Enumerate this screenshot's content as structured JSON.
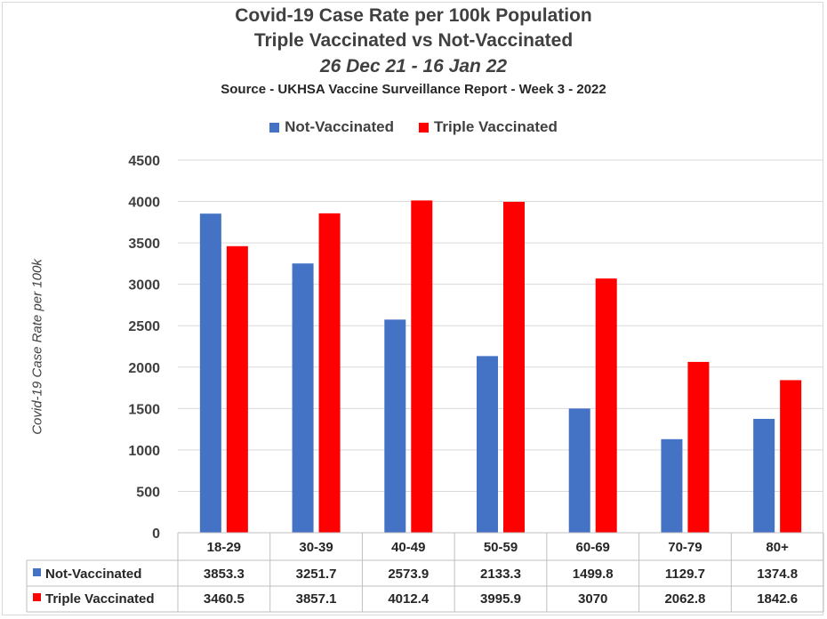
{
  "chart_data": {
    "type": "bar",
    "title": "Covid-19 Case Rate per 100k Population",
    "subtitle": "Triple Vaccinated vs Not-Vaccinated",
    "date_range": "26 Dec 21 - 16 Jan 22",
    "source": "Source - UKHSA Vaccine Surveillance Report - Week 3 - 2022",
    "ylabel": "Covid-19 Case Rate per 100k",
    "xlabel": "",
    "ylim": [
      0,
      4500
    ],
    "yticks": [
      0,
      500,
      1000,
      1500,
      2000,
      2500,
      3000,
      3500,
      4000,
      4500
    ],
    "categories": [
      "18-29",
      "30-39",
      "40-49",
      "50-59",
      "60-69",
      "70-79",
      "80+"
    ],
    "series": [
      {
        "name": "Not-Vaccinated",
        "color": "#4472c4",
        "values": [
          3853.3,
          3251.7,
          2573.9,
          2133.3,
          1499.8,
          1129.7,
          1374.8
        ],
        "labels": [
          "3853.3",
          "3251.7",
          "2573.9",
          "2133.3",
          "1499.8",
          "1129.7",
          "1374.8"
        ]
      },
      {
        "name": "Triple Vaccinated",
        "color": "#ff0000",
        "values": [
          3460.5,
          3857.1,
          4012.4,
          3995.9,
          3070,
          2062.8,
          1842.6
        ],
        "labels": [
          "3460.5",
          "3857.1",
          "4012.4",
          "3995.9",
          "3070",
          "2062.8",
          "1842.6"
        ]
      }
    ],
    "grid": true,
    "legend": "top",
    "data_table": true
  }
}
